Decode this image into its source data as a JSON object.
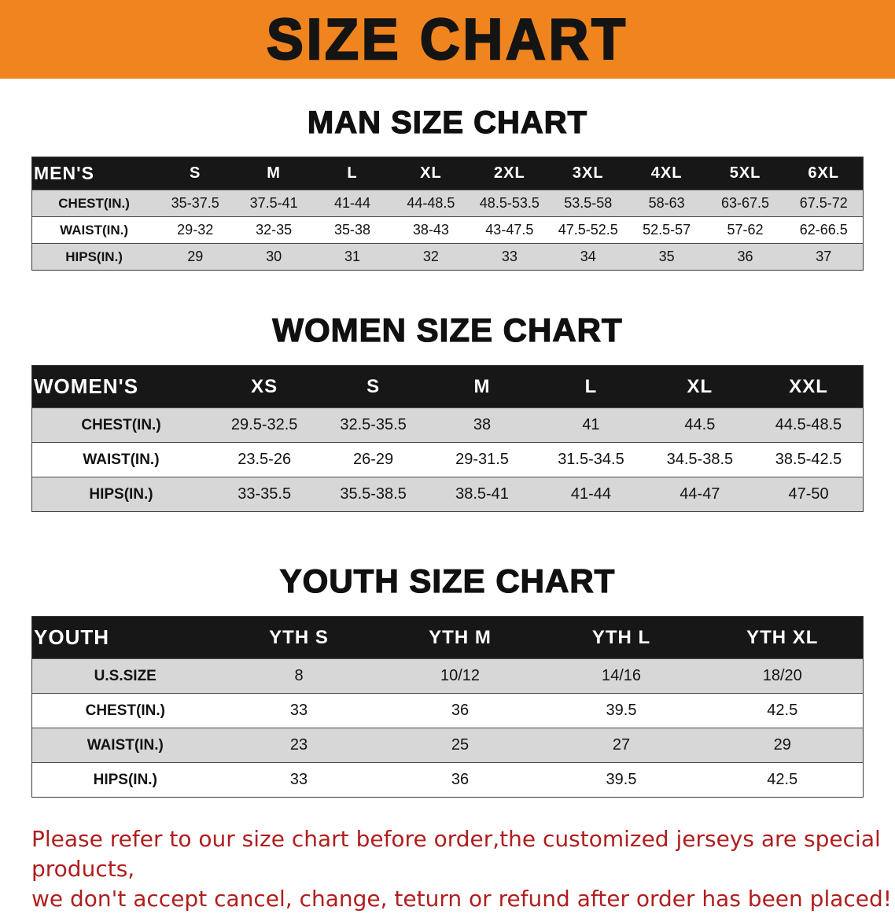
{
  "banner": {
    "title": "SIZE CHART"
  },
  "sections": [
    {
      "heading": "MAN SIZE CHART",
      "table": {
        "header": [
          "MEN'S",
          "S",
          "M",
          "L",
          "XL",
          "2XL",
          "3XL",
          "4XL",
          "5XL",
          "6XL"
        ],
        "rows": [
          [
            "CHEST(IN.)",
            "35-37.5",
            "37.5-41",
            "41-44",
            "44-48.5",
            "48.5-53.5",
            "53.5-58",
            "58-63",
            "63-67.5",
            "67.5-72"
          ],
          [
            "WAIST(IN.)",
            "29-32",
            "32-35",
            "35-38",
            "38-43",
            "43-47.5",
            "47.5-52.5",
            "52.5-57",
            "57-62",
            "62-66.5"
          ],
          [
            "HIPS(IN.)",
            "29",
            "30",
            "31",
            "32",
            "33",
            "34",
            "35",
            "36",
            "37"
          ]
        ]
      }
    },
    {
      "heading": "WOMEN SIZE CHART",
      "table": {
        "header": [
          "WOMEN'S",
          "XS",
          "S",
          "M",
          "L",
          "XL",
          "XXL"
        ],
        "rows": [
          [
            "CHEST(IN.)",
            "29.5-32.5",
            "32.5-35.5",
            "38",
            "41",
            "44.5",
            "44.5-48.5"
          ],
          [
            "WAIST(IN.)",
            "23.5-26",
            "26-29",
            "29-31.5",
            "31.5-34.5",
            "34.5-38.5",
            "38.5-42.5"
          ],
          [
            "HIPS(IN.)",
            "33-35.5",
            "35.5-38.5",
            "38.5-41",
            "41-44",
            "44-47",
            "47-50"
          ]
        ]
      }
    },
    {
      "heading": "YOUTH SIZE CHART",
      "table": {
        "header": [
          "YOUTH",
          "YTH S",
          "YTH M",
          "YTH L",
          "YTH XL"
        ],
        "rows": [
          [
            "U.S.SIZE",
            "8",
            "10/12",
            "14/16",
            "18/20"
          ],
          [
            "CHEST(IN.)",
            "33",
            "36",
            "39.5",
            "42.5"
          ],
          [
            "WAIST(IN.)",
            "23",
            "25",
            "27",
            "29"
          ],
          [
            "HIPS(IN.)",
            "33",
            "36",
            "39.5",
            "42.5"
          ]
        ]
      }
    }
  ],
  "disclaimer": {
    "line1": "Please refer to our size chart before order,the customized jerseys are special products,",
    "line2": "we don't accept cancel, change, teturn or refund after order has been placed!"
  },
  "colors": {
    "banner": "#F0841F",
    "header_bg": "#171717",
    "stripe": "#D7D7D7",
    "red": "#B01E1E"
  }
}
